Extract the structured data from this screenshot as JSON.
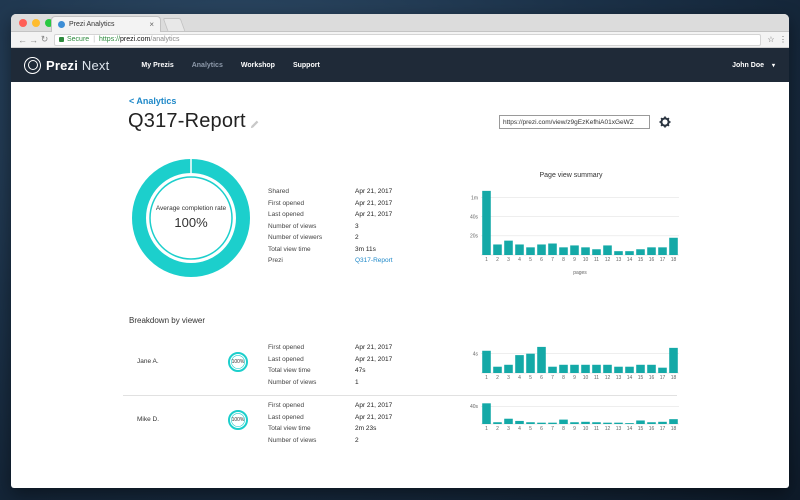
{
  "browser": {
    "tab_title": "Prezi Analytics",
    "tab_close": "×",
    "secure_label": "Secure",
    "url_scheme": "https://",
    "url_host": "prezi.com",
    "url_path": "/analytics",
    "back_glyph": "←",
    "forward_glyph": "→",
    "reload_glyph": "↻",
    "star_glyph": "☆",
    "menu_glyph": "⋮"
  },
  "appnav": {
    "logo_bold": "Prezi",
    "logo_light": " Next",
    "links": [
      "My Prezis",
      "Analytics",
      "Workshop",
      "Support"
    ],
    "active_link": "Analytics",
    "user_name": "John Doe",
    "caret": "▾"
  },
  "page": {
    "back_link": "< Analytics",
    "title": "Q317-Report",
    "share_url": "https://prezi.com/view/z9gEzKefhiA01xGeWZ",
    "completion_caption": "Average completion rate",
    "completion_value": "100%",
    "completion_fraction": 1.0,
    "stats": [
      {
        "label": "Shared",
        "value": "Apr 21, 2017"
      },
      {
        "label": "First opened",
        "value": "Apr 21, 2017"
      },
      {
        "label": "Last opened",
        "value": "Apr 21, 2017"
      },
      {
        "label": "Number of views",
        "value": "3"
      },
      {
        "label": "Number of viewers",
        "value": "2"
      },
      {
        "label": "Total view time",
        "value": "3m 11s"
      },
      {
        "label": "Prezi",
        "value": "Q317-Report",
        "link": true
      }
    ],
    "breakdown_title": "Breakdown by viewer"
  },
  "viewers": [
    {
      "name": "Jane A.",
      "ring_label": "100%",
      "stats": [
        {
          "label": "First opened",
          "value": "Apr 21, 2017"
        },
        {
          "label": "Last opened",
          "value": "Apr 21, 2017"
        },
        {
          "label": "Total view time",
          "value": "47s"
        },
        {
          "label": "Number of views",
          "value": "1"
        }
      ]
    },
    {
      "name": "Mike D.",
      "ring_label": "100%",
      "stats": [
        {
          "label": "First opened",
          "value": "Apr 21, 2017"
        },
        {
          "label": "Last opened",
          "value": "Apr 21, 2017"
        },
        {
          "label": "Total view time",
          "value": "2m 23s"
        },
        {
          "label": "Number of views",
          "value": "2"
        }
      ]
    }
  ],
  "colors": {
    "accent": "#1ccfcc",
    "bar": "#14a9a7",
    "link": "#1e88c8",
    "nav_bg": "#1f2a38"
  },
  "chart_data": [
    {
      "type": "bar",
      "title": "Page view summary",
      "xlabel": "pages",
      "ylabel": "",
      "categories": [
        "1",
        "2",
        "3",
        "4",
        "5",
        "6",
        "7",
        "8",
        "9",
        "10",
        "11",
        "12",
        "13",
        "14",
        "15",
        "16",
        "17",
        "18"
      ],
      "values": [
        67,
        11,
        15,
        11,
        8,
        11,
        12,
        8,
        10,
        8,
        6,
        10,
        4,
        4,
        6,
        8,
        8,
        18
      ],
      "y_tick_labels": [
        "20s",
        "40s",
        "1m"
      ],
      "y_ticks": [
        20,
        40,
        60
      ],
      "ylim": [
        0,
        70
      ],
      "grid": true
    },
    {
      "type": "bar",
      "title": "",
      "xlabel": "",
      "categories": [
        "1",
        "2",
        "3",
        "4",
        "5",
        "6",
        "7",
        "8",
        "9",
        "10",
        "11",
        "12",
        "13",
        "14",
        "15",
        "16",
        "17",
        "18"
      ],
      "values": [
        4.6,
        1.3,
        1.7,
        3.7,
        4.0,
        5.4,
        1.3,
        1.7,
        1.7,
        1.7,
        1.7,
        1.7,
        1.3,
        1.3,
        1.7,
        1.7,
        1.1,
        5.2
      ],
      "y_tick_labels": [
        "4s"
      ],
      "y_ticks": [
        4
      ],
      "ylim": [
        0,
        6
      ],
      "grid": true
    },
    {
      "type": "bar",
      "title": "",
      "xlabel": "",
      "categories": [
        "1",
        "2",
        "3",
        "4",
        "5",
        "6",
        "7",
        "8",
        "9",
        "10",
        "11",
        "12",
        "13",
        "14",
        "15",
        "16",
        "17",
        "18"
      ],
      "values": [
        47,
        4,
        12,
        7,
        4,
        3,
        3,
        10,
        4,
        5,
        4,
        3,
        3,
        2,
        8,
        4,
        5,
        11
      ],
      "y_tick_labels": [
        "40s"
      ],
      "y_ticks": [
        40
      ],
      "ylim": [
        0,
        50
      ],
      "grid": true
    }
  ]
}
